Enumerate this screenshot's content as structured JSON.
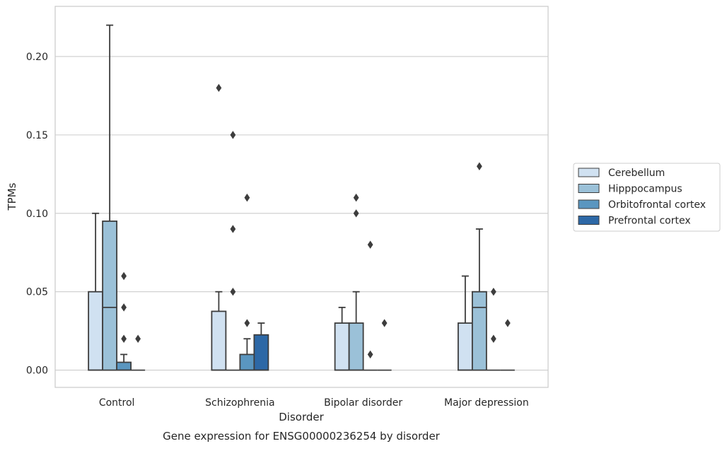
{
  "chart_data": {
    "type": "box",
    "title": "",
    "caption": "Gene expression for ENSG00000236254 by disorder",
    "xlabel": "Disorder",
    "ylabel": "TPMs",
    "ylim": [
      -0.011,
      0.232
    ],
    "yticks": [
      0.0,
      0.05,
      0.1,
      0.15,
      0.2
    ],
    "ytick_labels": [
      "0.00",
      "0.05",
      "0.10",
      "0.15",
      "0.20"
    ],
    "grid": "horizontal",
    "legend_position": "right",
    "categories": [
      "Control",
      "Schizophrenia",
      "Bipolar disorder",
      "Major depression"
    ],
    "series": [
      {
        "name": "Cerebellum",
        "color": "#d0e1f1",
        "boxes": [
          {
            "q1": 0.0,
            "median": 0.0,
            "q3": 0.05,
            "whisker_low": 0.0,
            "whisker_high": 0.1,
            "outliers": []
          },
          {
            "q1": 0.0,
            "median": 0.0,
            "q3": 0.0375,
            "whisker_low": 0.0,
            "whisker_high": 0.05,
            "outliers": [
              0.18
            ]
          },
          {
            "q1": 0.0,
            "median": 0.0,
            "q3": 0.03,
            "whisker_low": 0.0,
            "whisker_high": 0.04,
            "outliers": []
          },
          {
            "q1": 0.0,
            "median": 0.0,
            "q3": 0.03,
            "whisker_low": 0.0,
            "whisker_high": 0.06,
            "outliers": []
          }
        ]
      },
      {
        "name": "Hipppocampus",
        "color": "#9bc1d8",
        "boxes": [
          {
            "q1": 0.0,
            "median": 0.04,
            "q3": 0.095,
            "whisker_low": 0.0,
            "whisker_high": 0.22,
            "outliers": []
          },
          {
            "q1": 0.0,
            "median": 0.0,
            "q3": 0.0,
            "whisker_low": 0.0,
            "whisker_high": 0.0,
            "outliers": [
              0.05,
              0.09,
              0.15
            ]
          },
          {
            "q1": 0.0,
            "median": 0.0,
            "q3": 0.03,
            "whisker_low": 0.0,
            "whisker_high": 0.05,
            "outliers": [
              0.1,
              0.11
            ]
          },
          {
            "q1": 0.0,
            "median": 0.04,
            "q3": 0.05,
            "whisker_low": 0.0,
            "whisker_high": 0.09,
            "outliers": [
              0.13
            ]
          }
        ]
      },
      {
        "name": "Orbitofrontal cortex",
        "color": "#5a96c0",
        "boxes": [
          {
            "q1": 0.0,
            "median": 0.0,
            "q3": 0.005,
            "whisker_low": 0.0,
            "whisker_high": 0.01,
            "outliers": [
              0.02,
              0.04,
              0.06
            ]
          },
          {
            "q1": 0.0,
            "median": 0.0,
            "q3": 0.01,
            "whisker_low": 0.0,
            "whisker_high": 0.02,
            "outliers": [
              0.03,
              0.11
            ]
          },
          {
            "q1": 0.0,
            "median": 0.0,
            "q3": 0.0,
            "whisker_low": 0.0,
            "whisker_high": 0.0,
            "outliers": [
              0.01,
              0.08
            ]
          },
          {
            "q1": 0.0,
            "median": 0.0,
            "q3": 0.0,
            "whisker_low": 0.0,
            "whisker_high": 0.0,
            "outliers": [
              0.02,
              0.05
            ]
          }
        ]
      },
      {
        "name": "Prefrontal cortex",
        "color": "#2d68a6",
        "boxes": [
          {
            "q1": 0.0,
            "median": 0.0,
            "q3": 0.0,
            "whisker_low": 0.0,
            "whisker_high": 0.0,
            "outliers": [
              0.02
            ]
          },
          {
            "q1": 0.0,
            "median": 0.0,
            "q3": 0.0225,
            "whisker_low": 0.0,
            "whisker_high": 0.03,
            "outliers": []
          },
          {
            "q1": 0.0,
            "median": 0.0,
            "q3": 0.0,
            "whisker_low": 0.0,
            "whisker_high": 0.0,
            "outliers": [
              0.03
            ]
          },
          {
            "q1": 0.0,
            "median": 0.0,
            "q3": 0.0,
            "whisker_low": 0.0,
            "whisker_high": 0.0,
            "outliers": [
              0.03
            ]
          }
        ]
      }
    ]
  }
}
